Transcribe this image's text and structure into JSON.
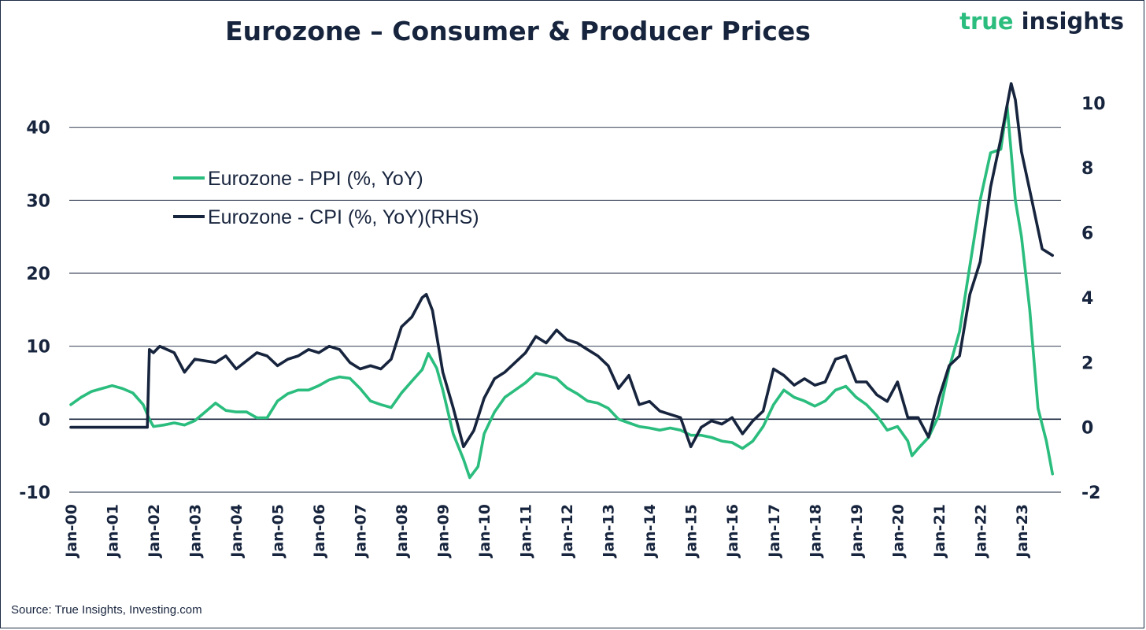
{
  "header": {
    "title": "Eurozone – Consumer & Producer Prices",
    "brand_part1": "true",
    "brand_part2": "insights"
  },
  "footer": {
    "source": "Source: True Insights, Investing.com"
  },
  "colors": {
    "ppi": "#2bbd7e",
    "cpi": "#17243d",
    "grid": "#17243d",
    "text": "#17243d"
  },
  "chart_data": {
    "type": "line",
    "title": "Eurozone – Consumer & Producer Prices",
    "xlabel": "",
    "ylabel": "",
    "x_tick_labels": [
      "Jan-00",
      "Jan-01",
      "Jan-02",
      "Jan-03",
      "Jan-04",
      "Jan-05",
      "Jan-06",
      "Jan-07",
      "Jan-08",
      "Jan-09",
      "Jan-10",
      "Jan-11",
      "Jan-12",
      "Jan-13",
      "Jan-14",
      "Jan-15",
      "Jan-16",
      "Jan-17",
      "Jan-18",
      "Jan-19",
      "Jan-20",
      "Jan-21",
      "Jan-22",
      "Jan-23"
    ],
    "x_range": [
      2000.0,
      2023.917
    ],
    "y_left": {
      "ticks": [
        -10,
        0,
        10,
        20,
        30,
        40
      ],
      "range": [
        -10,
        50
      ]
    },
    "y_right": {
      "ticks": [
        -2,
        0,
        2,
        4,
        6,
        8,
        10
      ],
      "range": [
        -2,
        11.5
      ]
    },
    "legend_position": "top-left",
    "grid": "horizontal",
    "series": [
      {
        "name": "Eurozone - PPI (%, YoY)",
        "axis": "left",
        "points": [
          [
            2000.0,
            2.0
          ],
          [
            2000.25,
            3.0
          ],
          [
            2000.5,
            3.8
          ],
          [
            2000.75,
            4.2
          ],
          [
            2001.0,
            4.6
          ],
          [
            2001.25,
            4.2
          ],
          [
            2001.5,
            3.6
          ],
          [
            2001.75,
            2.0
          ],
          [
            2001.9,
            0.0
          ],
          [
            2002.0,
            -1.0
          ],
          [
            2002.25,
            -0.8
          ],
          [
            2002.5,
            -0.5
          ],
          [
            2002.75,
            -0.8
          ],
          [
            2003.0,
            -0.2
          ],
          [
            2003.25,
            1.0
          ],
          [
            2003.5,
            2.2
          ],
          [
            2003.75,
            1.2
          ],
          [
            2004.0,
            1.0
          ],
          [
            2004.25,
            1.0
          ],
          [
            2004.5,
            0.2
          ],
          [
            2004.75,
            0.2
          ],
          [
            2005.0,
            2.5
          ],
          [
            2005.25,
            3.5
          ],
          [
            2005.5,
            4.0
          ],
          [
            2005.75,
            4.0
          ],
          [
            2006.0,
            4.6
          ],
          [
            2006.25,
            5.4
          ],
          [
            2006.5,
            5.8
          ],
          [
            2006.75,
            5.6
          ],
          [
            2007.0,
            4.2
          ],
          [
            2007.25,
            2.5
          ],
          [
            2007.5,
            2.0
          ],
          [
            2007.75,
            1.6
          ],
          [
            2008.0,
            3.6
          ],
          [
            2008.25,
            5.2
          ],
          [
            2008.5,
            6.8
          ],
          [
            2008.65,
            9.0
          ],
          [
            2008.85,
            7.0
          ],
          [
            2009.0,
            4.0
          ],
          [
            2009.25,
            -2.0
          ],
          [
            2009.5,
            -5.5
          ],
          [
            2009.65,
            -8.0
          ],
          [
            2009.85,
            -6.5
          ],
          [
            2010.0,
            -2.0
          ],
          [
            2010.25,
            1.0
          ],
          [
            2010.5,
            3.0
          ],
          [
            2010.75,
            4.0
          ],
          [
            2011.0,
            5.0
          ],
          [
            2011.25,
            6.3
          ],
          [
            2011.5,
            6.0
          ],
          [
            2011.75,
            5.6
          ],
          [
            2012.0,
            4.3
          ],
          [
            2012.25,
            3.5
          ],
          [
            2012.5,
            2.5
          ],
          [
            2012.75,
            2.2
          ],
          [
            2013.0,
            1.5
          ],
          [
            2013.25,
            0.0
          ],
          [
            2013.5,
            -0.5
          ],
          [
            2013.75,
            -1.0
          ],
          [
            2014.0,
            -1.2
          ],
          [
            2014.25,
            -1.5
          ],
          [
            2014.5,
            -1.2
          ],
          [
            2014.75,
            -1.5
          ],
          [
            2015.0,
            -2.2
          ],
          [
            2015.25,
            -2.2
          ],
          [
            2015.5,
            -2.5
          ],
          [
            2015.75,
            -3.0
          ],
          [
            2016.0,
            -3.2
          ],
          [
            2016.25,
            -4.0
          ],
          [
            2016.5,
            -3.0
          ],
          [
            2016.75,
            -1.0
          ],
          [
            2017.0,
            2.0
          ],
          [
            2017.25,
            4.0
          ],
          [
            2017.5,
            3.0
          ],
          [
            2017.75,
            2.5
          ],
          [
            2018.0,
            1.8
          ],
          [
            2018.25,
            2.5
          ],
          [
            2018.5,
            4.0
          ],
          [
            2018.75,
            4.5
          ],
          [
            2019.0,
            3.0
          ],
          [
            2019.25,
            2.0
          ],
          [
            2019.5,
            0.5
          ],
          [
            2019.75,
            -1.5
          ],
          [
            2020.0,
            -1.0
          ],
          [
            2020.25,
            -3.0
          ],
          [
            2020.35,
            -5.0
          ],
          [
            2020.5,
            -4.0
          ],
          [
            2020.75,
            -2.5
          ],
          [
            2021.0,
            0.5
          ],
          [
            2021.25,
            7.0
          ],
          [
            2021.5,
            12.0
          ],
          [
            2021.75,
            21.0
          ],
          [
            2022.0,
            30.0
          ],
          [
            2022.25,
            36.5
          ],
          [
            2022.5,
            37.0
          ],
          [
            2022.65,
            43.0
          ],
          [
            2022.85,
            30.0
          ],
          [
            2023.0,
            25.0
          ],
          [
            2023.2,
            15.0
          ],
          [
            2023.4,
            1.5
          ],
          [
            2023.6,
            -3.0
          ],
          [
            2023.75,
            -7.5
          ]
        ]
      },
      {
        "name": "Eurozone - CPI (%, YoY)(RHS)",
        "axis": "right",
        "points": [
          [
            2000.0,
            0.0
          ],
          [
            2001.85,
            0.0
          ],
          [
            2001.9,
            2.4
          ],
          [
            2002.0,
            2.3
          ],
          [
            2002.15,
            2.5
          ],
          [
            2002.5,
            2.3
          ],
          [
            2002.75,
            1.7
          ],
          [
            2003.0,
            2.1
          ],
          [
            2003.5,
            2.0
          ],
          [
            2003.75,
            2.2
          ],
          [
            2004.0,
            1.8
          ],
          [
            2004.5,
            2.3
          ],
          [
            2004.75,
            2.2
          ],
          [
            2005.0,
            1.9
          ],
          [
            2005.25,
            2.1
          ],
          [
            2005.5,
            2.2
          ],
          [
            2005.75,
            2.4
          ],
          [
            2006.0,
            2.3
          ],
          [
            2006.25,
            2.5
          ],
          [
            2006.5,
            2.4
          ],
          [
            2006.75,
            2.0
          ],
          [
            2007.0,
            1.8
          ],
          [
            2007.25,
            1.9
          ],
          [
            2007.5,
            1.8
          ],
          [
            2007.75,
            2.1
          ],
          [
            2008.0,
            3.1
          ],
          [
            2008.25,
            3.4
          ],
          [
            2008.5,
            4.0
          ],
          [
            2008.6,
            4.1
          ],
          [
            2008.75,
            3.6
          ],
          [
            2009.0,
            1.7
          ],
          [
            2009.25,
            0.6
          ],
          [
            2009.5,
            -0.6
          ],
          [
            2009.75,
            -0.1
          ],
          [
            2010.0,
            0.9
          ],
          [
            2010.25,
            1.5
          ],
          [
            2010.5,
            1.7
          ],
          [
            2010.75,
            2.0
          ],
          [
            2011.0,
            2.3
          ],
          [
            2011.25,
            2.8
          ],
          [
            2011.5,
            2.6
          ],
          [
            2011.75,
            3.0
          ],
          [
            2012.0,
            2.7
          ],
          [
            2012.25,
            2.6
          ],
          [
            2012.5,
            2.4
          ],
          [
            2012.75,
            2.2
          ],
          [
            2013.0,
            1.9
          ],
          [
            2013.25,
            1.2
          ],
          [
            2013.5,
            1.6
          ],
          [
            2013.75,
            0.7
          ],
          [
            2014.0,
            0.8
          ],
          [
            2014.25,
            0.5
          ],
          [
            2014.5,
            0.4
          ],
          [
            2014.75,
            0.3
          ],
          [
            2015.0,
            -0.6
          ],
          [
            2015.25,
            0.0
          ],
          [
            2015.5,
            0.2
          ],
          [
            2015.75,
            0.1
          ],
          [
            2016.0,
            0.3
          ],
          [
            2016.25,
            -0.2
          ],
          [
            2016.5,
            0.2
          ],
          [
            2016.75,
            0.5
          ],
          [
            2017.0,
            1.8
          ],
          [
            2017.25,
            1.6
          ],
          [
            2017.5,
            1.3
          ],
          [
            2017.75,
            1.5
          ],
          [
            2018.0,
            1.3
          ],
          [
            2018.25,
            1.4
          ],
          [
            2018.5,
            2.1
          ],
          [
            2018.75,
            2.2
          ],
          [
            2019.0,
            1.4
          ],
          [
            2019.25,
            1.4
          ],
          [
            2019.5,
            1.0
          ],
          [
            2019.75,
            0.8
          ],
          [
            2020.0,
            1.4
          ],
          [
            2020.25,
            0.3
          ],
          [
            2020.5,
            0.3
          ],
          [
            2020.75,
            -0.3
          ],
          [
            2021.0,
            0.9
          ],
          [
            2021.25,
            1.9
          ],
          [
            2021.5,
            2.2
          ],
          [
            2021.75,
            4.1
          ],
          [
            2022.0,
            5.1
          ],
          [
            2022.25,
            7.4
          ],
          [
            2022.5,
            8.9
          ],
          [
            2022.75,
            10.6
          ],
          [
            2022.85,
            10.1
          ],
          [
            2023.0,
            8.5
          ],
          [
            2023.25,
            7.0
          ],
          [
            2023.5,
            5.5
          ],
          [
            2023.75,
            5.3
          ]
        ]
      }
    ]
  }
}
